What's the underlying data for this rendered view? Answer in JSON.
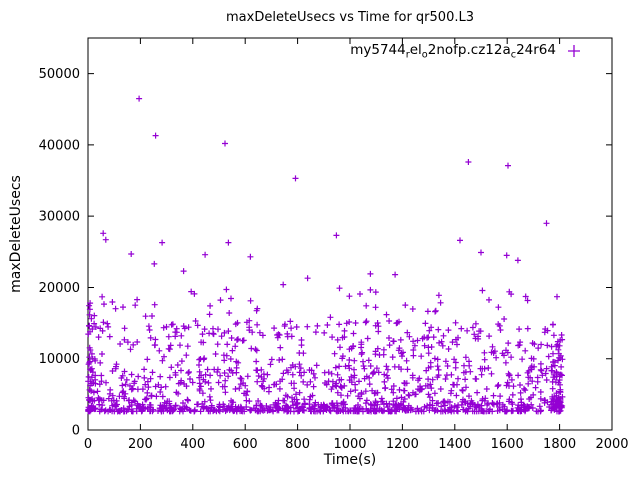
{
  "chart_data": {
    "type": "scatter",
    "title": "maxDeleteUsecs vs Time for qr500.L3",
    "xlabel": "Time(s)",
    "ylabel": "maxDeleteUsecs",
    "xlim": [
      0,
      2000
    ],
    "ylim": [
      0,
      55000
    ],
    "xticks": [
      0,
      200,
      400,
      600,
      800,
      1000,
      1200,
      1400,
      1600,
      1800,
      2000
    ],
    "yticks": [
      0,
      10000,
      20000,
      30000,
      40000,
      50000
    ],
    "grid": false,
    "series_color": "#9400d3",
    "marker": "plus",
    "legend": {
      "position": "top-right-inside",
      "marker": "plus",
      "label_parts": [
        {
          "t": "my5744"
        },
        {
          "t": "r",
          "sub": true
        },
        {
          "t": "el"
        },
        {
          "t": "o",
          "sub": true
        },
        {
          "t": "2nofp.cz12a"
        },
        {
          "t": "c",
          "sub": true
        },
        {
          "t": "24r64"
        }
      ]
    },
    "outliers": [
      [
        195,
        46500
      ],
      [
        258,
        41300
      ],
      [
        523,
        40200
      ],
      [
        1452,
        37600
      ],
      [
        1603,
        37100
      ],
      [
        792,
        35300
      ],
      [
        1750,
        29000
      ],
      [
        948,
        27300
      ],
      [
        58,
        27600
      ],
      [
        68,
        26700
      ],
      [
        283,
        26300
      ],
      [
        536,
        26300
      ],
      [
        1420,
        26600
      ],
      [
        447,
        24600
      ],
      [
        1500,
        24900
      ],
      [
        1641,
        23800
      ],
      [
        253,
        23300
      ],
      [
        1078,
        21900
      ],
      [
        1172,
        21800
      ],
      [
        838,
        21300
      ],
      [
        745,
        20400
      ],
      [
        960,
        19900
      ],
      [
        1790,
        18700
      ],
      [
        365,
        22300
      ],
      [
        620,
        24300
      ],
      [
        165,
        24700
      ],
      [
        8,
        17800
      ],
      [
        1598,
        24500
      ]
    ],
    "band_spec": {
      "seed": 7,
      "n": 1300,
      "x_range": [
        3,
        1812
      ],
      "bands": [
        {
          "p": 0.44,
          "y": [
            2600,
            4200
          ]
        },
        {
          "p": 0.28,
          "y": [
            4200,
            9000
          ]
        },
        {
          "p": 0.24,
          "y": [
            9000,
            15300
          ]
        },
        {
          "p": 0.04,
          "y": [
            15300,
            19800
          ]
        }
      ],
      "clusters": [
        {
          "x": [
            0,
            16
          ],
          "n": 40,
          "y": [
            2600,
            18000
          ]
        },
        {
          "x": [
            1768,
            1812
          ],
          "n": 60,
          "y": [
            3000,
            15200
          ]
        }
      ]
    }
  }
}
